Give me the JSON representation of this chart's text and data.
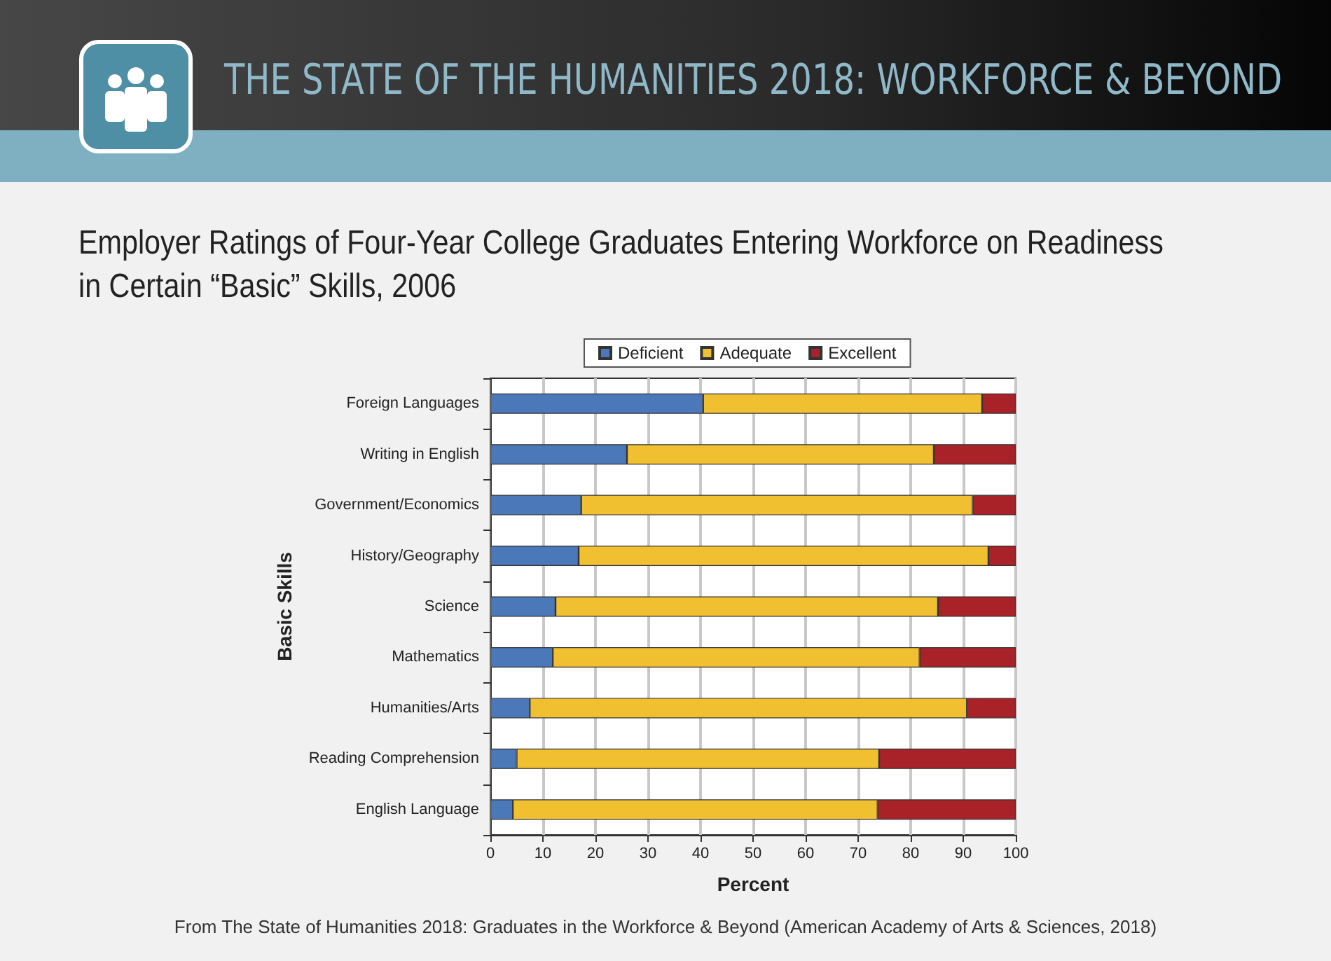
{
  "chart_data": {
    "type": "bar",
    "orientation": "horizontal",
    "stacked": true,
    "title": "Employer Ratings of Four-Year College Graduates Entering Workforce on Readiness in Certain “Basic” Skills, 2006",
    "annotations": [
      "THE STATE OF THE HUMANITIES 2018: WORKFORCE & BEYOND",
      "From The State of Humanities 2018: Graduates in the Workforce & Beyond (American Academy of Arts & Sciences, 2018)"
    ],
    "xlabel": "Percent",
    "ylabel": "Basic Skills",
    "categories": [
      "Foreign Languages",
      "Writing in English",
      "Government/Economics",
      "History/Geography",
      "Science",
      "Mathematics",
      "Humanities/Arts",
      "Reading Comprehension",
      "English Language"
    ],
    "series": [
      {
        "name": "Deficient",
        "color": "#4a78b8",
        "values": [
          40.5,
          26.0,
          17.3,
          16.8,
          12.4,
          11.9,
          7.5,
          5.0,
          4.3
        ]
      },
      {
        "name": "Adequate",
        "color": "#f0c030",
        "values": [
          53.1,
          58.4,
          74.5,
          78.0,
          72.8,
          69.8,
          83.2,
          69.0,
          69.4
        ]
      },
      {
        "name": "Excellent",
        "color": "#a82228",
        "values": [
          6.4,
          15.6,
          8.2,
          5.2,
          14.8,
          18.3,
          9.3,
          26.0,
          26.3
        ]
      }
    ],
    "xlim": [
      0,
      100
    ],
    "xticks": [
      0,
      10,
      20,
      30,
      40,
      50,
      60,
      70,
      80,
      90,
      100
    ],
    "grid": "x",
    "legend": "top"
  }
}
